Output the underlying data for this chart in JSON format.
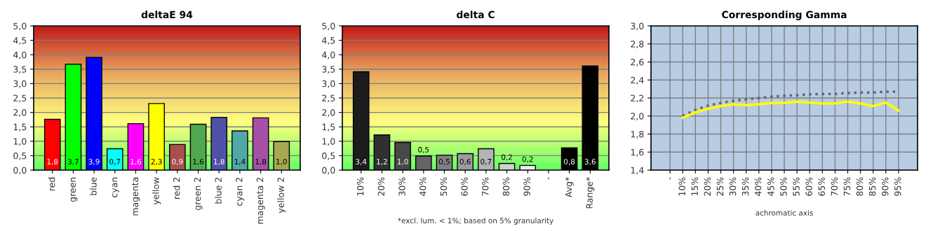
{
  "chart_data": [
    {
      "type": "bar",
      "title": "deltaE 94",
      "categories": [
        "red",
        "green",
        "blue",
        "cyan",
        "magenta",
        "yellow",
        "red 2",
        "green 2",
        "blue 2",
        "cyan 2",
        "magenta 2",
        "yellow 2"
      ],
      "values": [
        1.76,
        3.67,
        3.91,
        0.74,
        1.61,
        2.31,
        0.89,
        1.59,
        1.83,
        1.36,
        1.81,
        0.99
      ],
      "colors": [
        "#ff0000",
        "#00ff00",
        "#0000ff",
        "#00ffff",
        "#ff00ff",
        "#ffff00",
        "#a85050",
        "#50a850",
        "#5050a8",
        "#50a8a8",
        "#a850a8",
        "#a8a850"
      ],
      "value_labels": [
        "1,8",
        "3,7",
        "3,9",
        "0,7",
        "1,6",
        "2,3",
        "0,9",
        "1,6",
        "1,8",
        "1,4",
        "1,8",
        "1,0"
      ],
      "ylim": [
        0,
        5
      ],
      "yticks": [
        {
          "value": 0,
          "label": "0,0"
        },
        {
          "value": 0.5,
          "label": "0,5"
        },
        {
          "value": 1,
          "label": "1,0"
        },
        {
          "value": 1.5,
          "label": "1,5"
        },
        {
          "value": 2,
          "label": "2,0"
        },
        {
          "value": 2.5,
          "label": "2,5"
        },
        {
          "value": 3,
          "label": "3,0"
        },
        {
          "value": 3.5,
          "label": "3,5"
        },
        {
          "value": 4,
          "label": "4,0"
        },
        {
          "value": 4.5,
          "label": "4,5"
        },
        {
          "value": 5,
          "label": "5,0"
        }
      ],
      "grid": "y"
    },
    {
      "type": "bar",
      "title": "delta C",
      "categories": [
        "10%",
        "20%",
        "30%",
        "40%",
        "50%",
        "60%",
        "70%",
        "80%",
        "90%",
        "-",
        "Avg*",
        "Range*"
      ],
      "values": [
        3.41,
        1.22,
        0.96,
        0.49,
        0.52,
        0.57,
        0.74,
        0.23,
        0.16,
        null,
        0.77,
        3.61
      ],
      "colors": [
        "#1c1c1c",
        "#303030",
        "#484848",
        "#646464",
        "#808080",
        "#9c9c9c",
        "#b4b4b4",
        "#d0d0d0",
        "#ececec",
        "#000000",
        "#000000",
        "#000000"
      ],
      "value_labels": [
        "3,4",
        "1,2",
        "1,0",
        "0,5",
        "0,5",
        "0,6",
        "0,7",
        "0,2",
        "0,2",
        null,
        "0,8",
        "3,6"
      ],
      "annotations": [
        "*excl. lum. < 1%; based on 5% granularity"
      ],
      "ylim": [
        0,
        5
      ],
      "yticks": [
        {
          "value": 0,
          "label": "0,0"
        },
        {
          "value": 0.5,
          "label": "0,5"
        },
        {
          "value": 1,
          "label": "1,0"
        },
        {
          "value": 1.5,
          "label": "1,5"
        },
        {
          "value": 2,
          "label": "2,0"
        },
        {
          "value": 2.5,
          "label": "2,5"
        },
        {
          "value": 3,
          "label": "3,0"
        },
        {
          "value": 3.5,
          "label": "3,5"
        },
        {
          "value": 4,
          "label": "4,0"
        },
        {
          "value": 4.5,
          "label": "4,5"
        },
        {
          "value": 5,
          "label": "5,0"
        }
      ],
      "grid": "y"
    },
    {
      "type": "line",
      "title": "Corresponding Gamma",
      "xlabel": "achromatic axis",
      "categories": [
        "-",
        "10%",
        "15%",
        "20%",
        "25%",
        "30%",
        "35%",
        "40%",
        "45%",
        "50%",
        "55%",
        "60%",
        "65%",
        "70%",
        "75%",
        "80%",
        "85%",
        "90%",
        "95%"
      ],
      "series": [
        {
          "color": "#666666",
          "line_style": "dotted",
          "values": [
            null,
            2.0,
            2.07,
            2.115,
            2.145,
            2.17,
            2.185,
            2.2,
            2.215,
            2.225,
            2.23,
            2.24,
            2.245,
            2.245,
            2.255,
            2.26,
            2.26,
            2.27,
            2.27
          ]
        },
        {
          "color": "#ffff00",
          "line_style": "solid",
          "values": [
            null,
            1.98,
            2.04,
            2.08,
            2.11,
            2.13,
            2.12,
            2.13,
            2.145,
            2.145,
            2.16,
            2.15,
            2.14,
            2.14,
            2.16,
            2.14,
            2.11,
            2.15,
            2.06
          ]
        }
      ],
      "ylim": [
        1.4,
        3.0
      ],
      "yticks": [
        {
          "value": 1.4,
          "label": "1,4"
        },
        {
          "value": 1.6,
          "label": "1,6"
        },
        {
          "value": 1.8,
          "label": "1,8"
        },
        {
          "value": 2.0,
          "label": "2,0"
        },
        {
          "value": 2.2,
          "label": "2,2"
        },
        {
          "value": 2.4,
          "label": "2,4"
        },
        {
          "value": 2.6,
          "label": "2,6"
        },
        {
          "value": 2.8,
          "label": "2,8"
        },
        {
          "value": 3.0,
          "label": "3,0"
        }
      ],
      "grid": true,
      "marker": "none"
    }
  ]
}
